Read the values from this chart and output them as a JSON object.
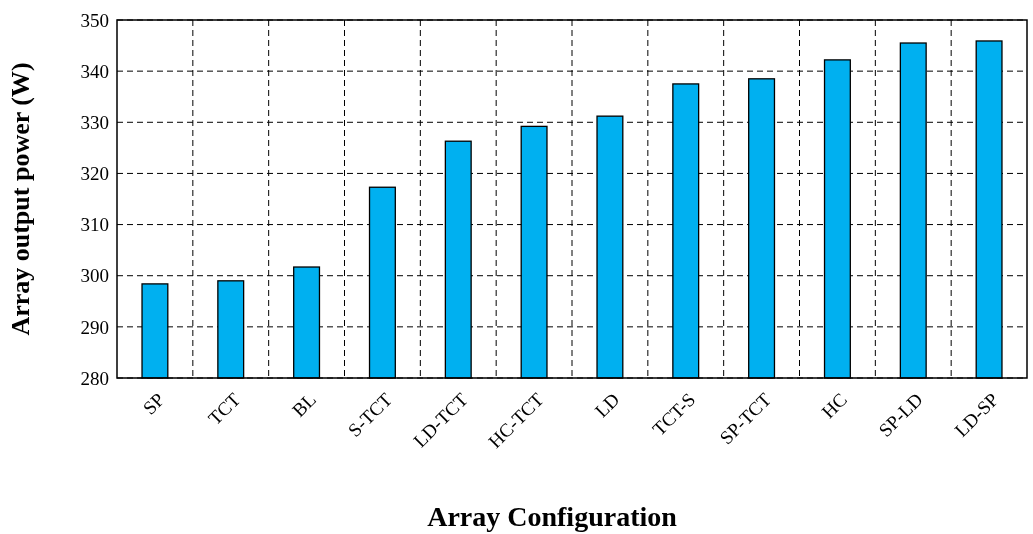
{
  "chart_data": {
    "type": "bar",
    "xlabel": "Array Configuration",
    "ylabel": "Array output power (W)",
    "categories": [
      "SP",
      "TCT",
      "BL",
      "S-TCT",
      "LD-TCT",
      "HC-TCT",
      "LD",
      "TCT-S",
      "SP-TCT",
      "HC",
      "SP-LD",
      "LD-SP"
    ],
    "values": [
      298.4,
      299.0,
      301.7,
      317.3,
      326.3,
      329.2,
      331.2,
      337.5,
      338.5,
      342.2,
      345.5,
      345.9
    ],
    "color": "#00b0f0",
    "ylim": [
      280,
      350
    ],
    "yticks": [
      280,
      290,
      300,
      310,
      320,
      330,
      340,
      350
    ],
    "grid": true
  }
}
